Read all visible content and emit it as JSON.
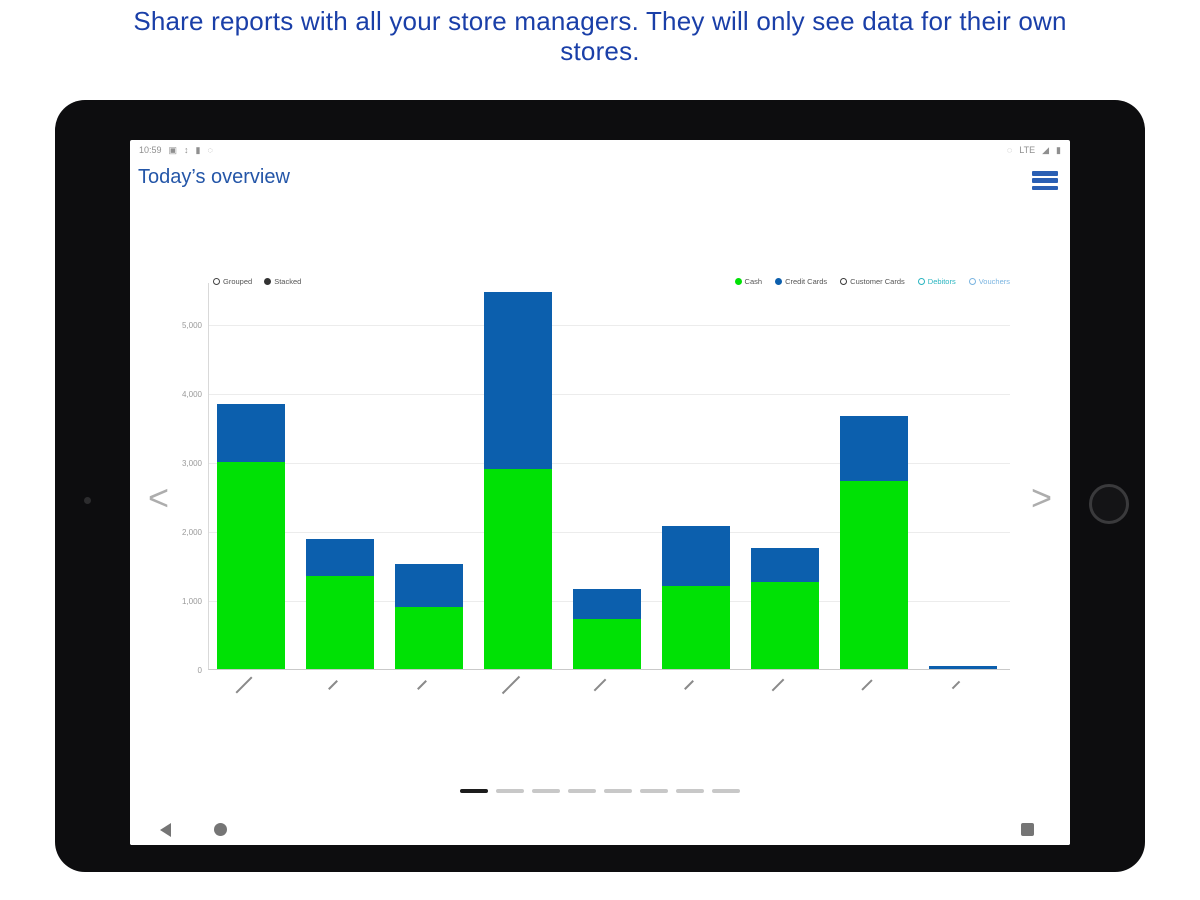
{
  "page": {
    "headline": "Share reports with all your store managers. They will only see data for their own stores.",
    "accent_color": "#1a3fa8"
  },
  "tablet": {
    "status_bar": {
      "time": "10:59",
      "left_icons": [
        "▣",
        "↕",
        "▮",
        "◌"
      ],
      "pre_network_icon": "◌",
      "network": "LTE",
      "right_icons": [
        "◢",
        "▮"
      ]
    },
    "app_bar": {
      "title": "Today’s overview",
      "menu_icon": "hamburger-menu"
    },
    "carousel": {
      "total_pages": 8,
      "active_page_index": 0
    },
    "nav_icons": [
      "back-triangle",
      "home-circle",
      "recents-square"
    ],
    "pager_arrows": {
      "left": "<",
      "right": ">"
    }
  },
  "chart_data": {
    "type": "bar",
    "stacked": true,
    "grid": true,
    "legend_position": "top-right",
    "mode_toggle": [
      {
        "label": "Grouped",
        "selected": false
      },
      {
        "label": "Stacked",
        "selected": true
      }
    ],
    "legend": [
      {
        "label": "Cash",
        "color": "#00e105",
        "style": "filled"
      },
      {
        "label": "Credit Cards",
        "color": "#0c5fad",
        "style": "filled"
      },
      {
        "label": "Customer Cards",
        "color": "#3a3a3a",
        "style": "outline"
      },
      {
        "label": "Debitors",
        "color": "#2ab5c0",
        "style": "outline"
      },
      {
        "label": "Vouchers",
        "color": "#7ab4e0",
        "style": "outline"
      }
    ],
    "categories": [
      "",
      "",
      "",
      "",
      "",
      "",
      "",
      "",
      ""
    ],
    "x_labels_note": "rotated store-name labels, illegible at source resolution",
    "x_tick_mark_lengths": [
      22,
      12,
      12,
      24,
      16,
      12,
      16,
      14,
      10
    ],
    "series": [
      {
        "name": "Cash",
        "color": "#00e105",
        "values": [
          3000,
          1350,
          900,
          2900,
          725,
          1200,
          1260,
          2725,
          0
        ]
      },
      {
        "name": "Credit Cards",
        "color": "#0c5fad",
        "values": [
          840,
          535,
          620,
          2560,
          435,
          870,
          490,
          940,
          45
        ]
      }
    ],
    "y_ticks": [
      {
        "label": "0",
        "value": 0
      },
      {
        "label": "1,000",
        "value": 1000
      },
      {
        "label": "2,000",
        "value": 2000
      },
      {
        "label": "3,000",
        "value": 3000
      },
      {
        "label": "4,000",
        "value": 4000
      },
      {
        "label": "5,000",
        "value": 5000
      }
    ],
    "ylim": [
      0,
      5609
    ]
  }
}
